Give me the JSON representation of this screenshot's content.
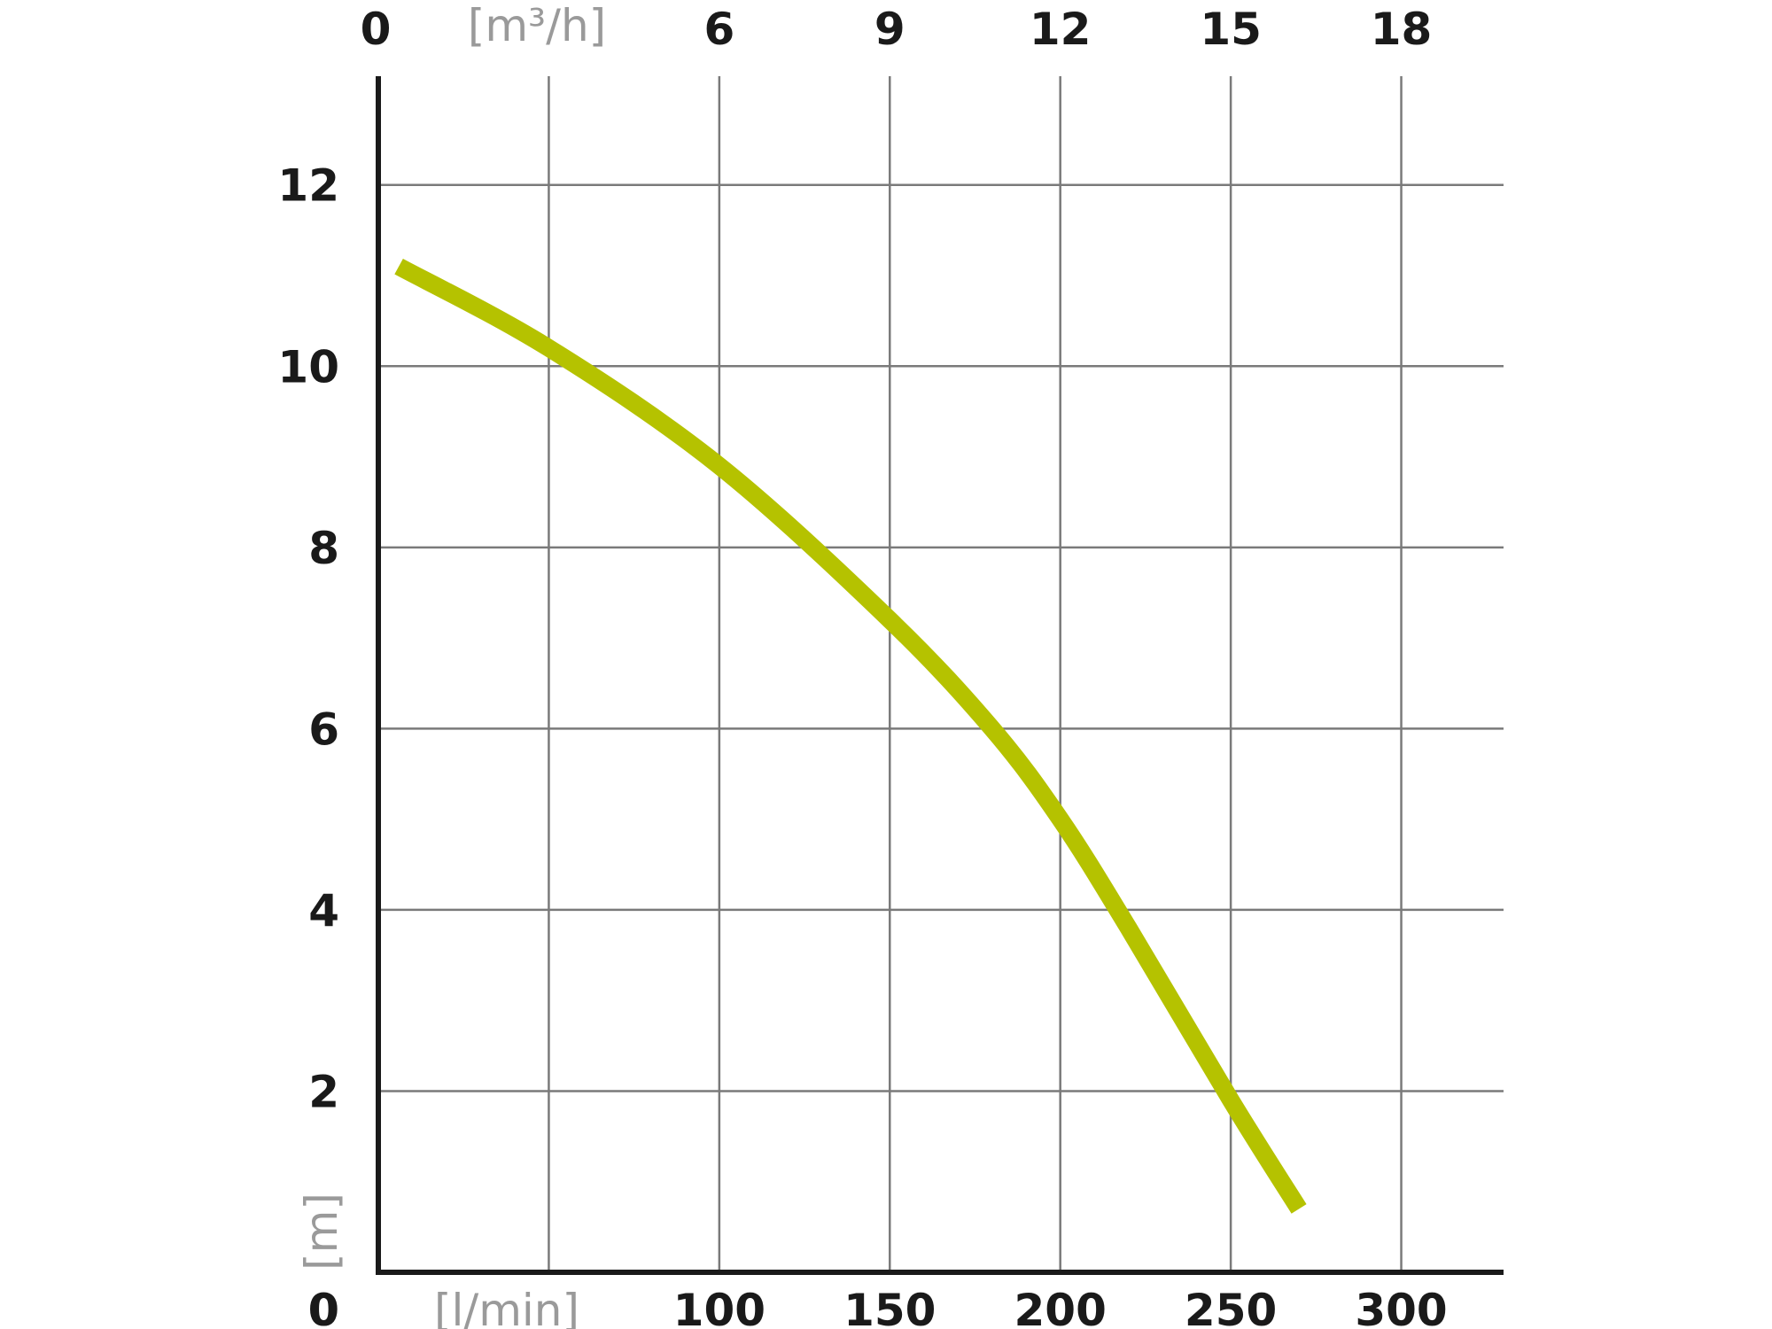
{
  "chart_data": {
    "type": "line",
    "title": "",
    "x_bottom": {
      "label": "[l/min]",
      "ticks": [
        "0",
        "100",
        "150",
        "200",
        "250",
        "300"
      ],
      "tick_values": [
        0,
        100,
        150,
        200,
        250,
        300
      ],
      "range": [
        0,
        330
      ]
    },
    "x_top": {
      "label": "[m³/h]",
      "ticks": [
        "0",
        "6",
        "9",
        "12",
        "15",
        "18"
      ],
      "tick_values": [
        0,
        6,
        9,
        12,
        15,
        18
      ]
    },
    "y": {
      "label": "[m]",
      "ticks": [
        "0",
        "2",
        "4",
        "6",
        "8",
        "10",
        "12"
      ],
      "tick_values": [
        0,
        2,
        4,
        6,
        8,
        10,
        12
      ],
      "range": [
        0,
        13.2
      ]
    },
    "grid": true,
    "line_color": "#b5c200",
    "series": [
      {
        "x": [
          6,
          50,
          100,
          150,
          180,
          200,
          220,
          250,
          270
        ],
        "y": [
          11.1,
          10.2,
          8.9,
          7.2,
          6.0,
          5.0,
          3.8,
          1.9,
          0.7
        ]
      }
    ]
  }
}
